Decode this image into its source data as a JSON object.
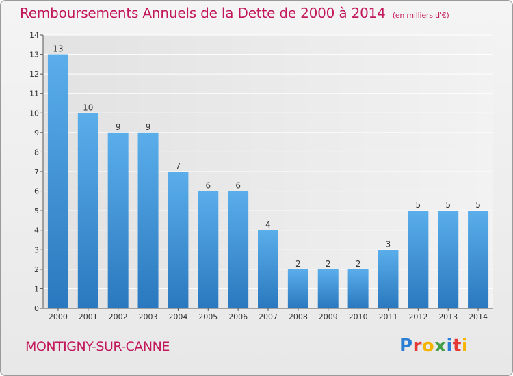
{
  "title": "Remboursements Annuels de la Dette de 2000 à 2014",
  "unit_note": "(en milliers d'€)",
  "commune": "MONTIGNY-SUR-CANNE",
  "logo": {
    "text": "Proxiti",
    "letters": [
      {
        "ch": "P",
        "color": "#2a7fd4"
      },
      {
        "ch": "r",
        "color": "#e53935"
      },
      {
        "ch": "o",
        "color": "#f4b400"
      },
      {
        "ch": "x",
        "color": "#43a047"
      },
      {
        "ch": "i",
        "color": "#2a7fd4"
      },
      {
        "ch": "t",
        "color": "#e53935"
      },
      {
        "ch": "i",
        "color": "#f4b400"
      }
    ]
  },
  "chart_data": {
    "type": "bar",
    "title": "Remboursements Annuels de la Dette de 2000 à 2014",
    "subtitle": "(en milliers d'€)",
    "xlabel": "",
    "ylabel": "",
    "categories": [
      "2000",
      "2001",
      "2002",
      "2003",
      "2004",
      "2005",
      "2006",
      "2007",
      "2008",
      "2009",
      "2010",
      "2011",
      "2012",
      "2013",
      "2014"
    ],
    "values": [
      13,
      10,
      9,
      9,
      7,
      6,
      6,
      4,
      2,
      2,
      2,
      3,
      5,
      5,
      5
    ],
    "ylim": [
      0,
      14
    ],
    "yticks": [
      0,
      1,
      2,
      3,
      4,
      5,
      6,
      7,
      8,
      9,
      10,
      11,
      12,
      13,
      14
    ],
    "ytick_labels": [
      "0",
      "1",
      "2",
      "3",
      "4",
      "5",
      "6",
      "7",
      "8",
      "9",
      "10",
      "11",
      "12",
      "13",
      "14"
    ],
    "data_labels": true,
    "grid": true,
    "bar_color": "#3d8fd8"
  }
}
